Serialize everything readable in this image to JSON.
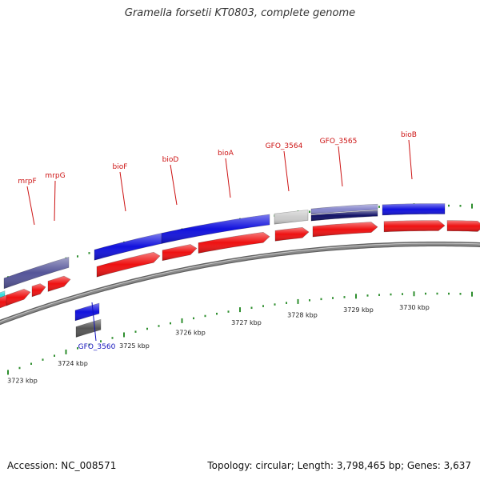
{
  "title": "Gramella forsetii KT0803, complete genome",
  "footer": {
    "accession": "Accession: NC_008571",
    "summary": "Topology: circular; Length: 3,798,465 bp; Genes: 3,637"
  },
  "colors": {
    "backbone": "#8a8a8a",
    "tick": "#2f8f2f",
    "label_top": "#cc1111",
    "label_bottom": "#1111bb",
    "forward_red": "#ee1111",
    "blue": "#1111dd",
    "dark_navy": "#111166",
    "slate": "#555599",
    "lavender": "#8888cc",
    "light_grey": "#cccccc",
    "dark_grey": "#555555",
    "cyan": "#33dddd"
  },
  "scale": {
    "unit": "kbp",
    "labels": [
      "3723 kbp",
      "3724 kbp",
      "3725 kbp",
      "3726 kbp",
      "3727 kbp",
      "3728 kbp",
      "3729 kbp",
      "3730 kbp"
    ]
  },
  "labels": {
    "top": [
      "mrpF",
      "mrpG",
      "bioF",
      "bioD",
      "bioA",
      "GFO_3564",
      "GFO_3565",
      "bioB"
    ],
    "bottom": [
      "GFO_3560"
    ]
  }
}
